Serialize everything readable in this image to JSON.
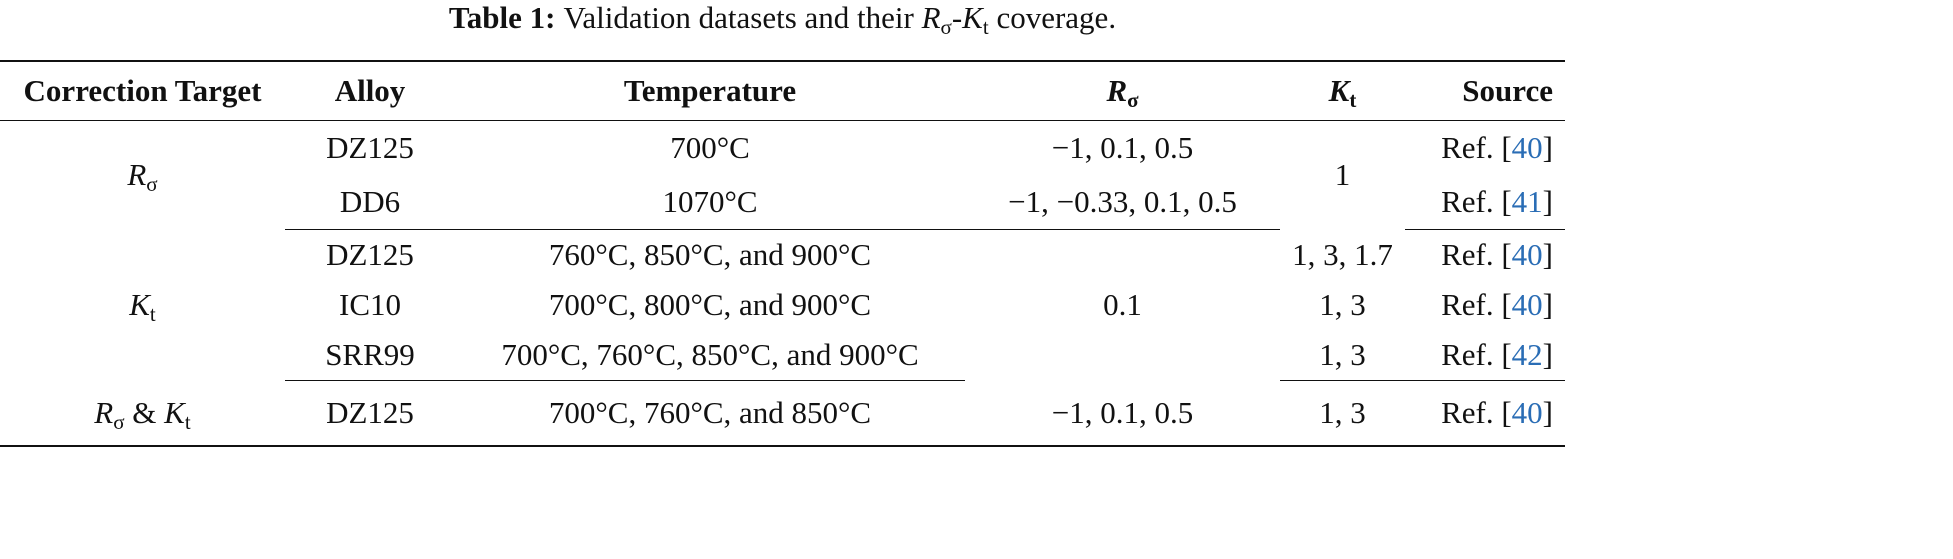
{
  "caption": {
    "label": "Table 1:",
    "text_before": "Validation datasets and their",
    "sym1": {
      "base": "R",
      "sub": "σ"
    },
    "sep": "-",
    "sym2": {
      "base": "K",
      "sub": "t"
    },
    "text_after": "coverage."
  },
  "bracket_open": "[",
  "bracket_close": "]",
  "header": {
    "target": "Correction Target",
    "alloy": "Alloy",
    "temperature": "Temperature",
    "r": {
      "base": "R",
      "sub": "σ"
    },
    "k": {
      "base": "K",
      "sub": "t"
    },
    "source": "Source"
  },
  "groups": [
    {
      "target": [
        {
          "base": "R",
          "sub": "σ"
        }
      ],
      "rows": [
        {
          "alloy": "DZ125",
          "temperature": "700°C",
          "r": "−1, 0.1, 0.5",
          "k": "1",
          "source": {
            "label": "Ref.",
            "ref": "40"
          }
        },
        {
          "alloy": "DD6",
          "temperature": "1070°C",
          "r": "−1, −0.33, 0.1, 0.5",
          "source": {
            "label": "Ref.",
            "ref": "41"
          }
        }
      ]
    },
    {
      "target": [
        {
          "base": "K",
          "sub": "t"
        }
      ],
      "rows": [
        {
          "alloy": "DZ125",
          "temperature": "760°C, 850°C, and 900°C",
          "r": "0.1",
          "k": "1, 3, 1.7",
          "source": {
            "label": "Ref.",
            "ref": "40"
          }
        },
        {
          "alloy": "IC10",
          "temperature": "700°C, 800°C, and 900°C",
          "k": "1, 3",
          "source": {
            "label": "Ref.",
            "ref": "40"
          }
        },
        {
          "alloy": "SRR99",
          "temperature": "700°C, 760°C, 850°C, and 900°C",
          "k": "1, 3",
          "source": {
            "label": "Ref.",
            "ref": "42"
          }
        }
      ]
    },
    {
      "target": [
        {
          "base": "R",
          "sub": "σ"
        },
        {
          "base": "K",
          "sub": "t"
        }
      ],
      "joiner": "&",
      "rows": [
        {
          "alloy": "DZ125",
          "temperature": "700°C, 760°C, and 850°C",
          "r": "−1, 0.1, 0.5",
          "k": "1, 3",
          "source": {
            "label": "Ref.",
            "ref": "40"
          }
        }
      ]
    }
  ]
}
